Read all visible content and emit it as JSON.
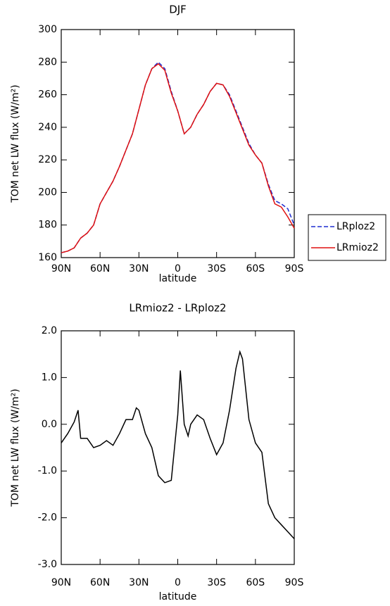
{
  "chart_data": [
    {
      "type": "line",
      "title": "DJF",
      "xlabel": "latitude",
      "ylabel": "TOM net LW flux (W/m²)",
      "x": [
        90,
        85,
        80,
        75,
        70,
        65,
        60,
        55,
        50,
        45,
        40,
        35,
        30,
        25,
        20,
        15,
        10,
        5,
        0,
        -5,
        -10,
        -15,
        -20,
        -25,
        -30,
        -35,
        -40,
        -45,
        -50,
        -55,
        -60,
        -65,
        -70,
        -75,
        -80,
        -85,
        -90
      ],
      "series": [
        {
          "name": "LRploz2",
          "color": "#1f2fd0",
          "dash": true,
          "values": [
            163,
            164,
            166,
            172,
            175,
            180,
            193,
            200,
            207,
            216,
            226,
            236,
            251,
            266,
            276,
            280,
            276,
            262,
            250,
            236,
            240,
            248,
            254,
            262,
            267,
            266,
            260,
            250,
            240,
            230,
            223,
            218,
            205,
            195,
            193,
            190,
            180
          ]
        },
        {
          "name": "LRmioz2",
          "color": "#e01010",
          "dash": false,
          "values": [
            163,
            164,
            166,
            172,
            175,
            180,
            193,
            200,
            207,
            216,
            226,
            236,
            251,
            266,
            276,
            279,
            275,
            261,
            250,
            236,
            240,
            248,
            254,
            262,
            267,
            266,
            259,
            249,
            239,
            229,
            223,
            218,
            204,
            193,
            191,
            185,
            178
          ]
        }
      ],
      "xlim": [
        90,
        -90
      ],
      "xticks": [
        {
          "value": 90,
          "label": "90N"
        },
        {
          "value": 60,
          "label": "60N"
        },
        {
          "value": 30,
          "label": "30N"
        },
        {
          "value": 0,
          "label": "0"
        },
        {
          "value": -30,
          "label": "30S"
        },
        {
          "value": -60,
          "label": "60S"
        },
        {
          "value": -90,
          "label": "90S"
        }
      ],
      "ylim": [
        160,
        300
      ],
      "yticks": [
        160,
        180,
        200,
        220,
        240,
        260,
        280,
        300
      ],
      "legend": "right"
    },
    {
      "type": "line",
      "title": "LRmioz2 - LRploz2",
      "xlabel": "latitude",
      "ylabel": "TOM net LW flux (W/m²)",
      "x": [
        90,
        85,
        80,
        77,
        75,
        70,
        65,
        60,
        55,
        50,
        45,
        40,
        35,
        32,
        30,
        25,
        20,
        15,
        10,
        5,
        0,
        -2,
        -5,
        -8,
        -10,
        -15,
        -20,
        -25,
        -30,
        -35,
        -40,
        -45,
        -48,
        -50,
        -55,
        -60,
        -65,
        -70,
        -75,
        -80,
        -85,
        -90
      ],
      "values": [
        -0.4,
        -0.2,
        0.05,
        0.3,
        -0.3,
        -0.3,
        -0.5,
        -0.45,
        -0.35,
        -0.45,
        -0.2,
        0.1,
        0.1,
        0.35,
        0.3,
        -0.2,
        -0.5,
        -1.1,
        -1.25,
        -1.2,
        0.2,
        1.15,
        0.0,
        -0.25,
        0.0,
        0.2,
        0.1,
        -0.3,
        -0.65,
        -0.4,
        0.3,
        1.2,
        1.55,
        1.4,
        0.1,
        -0.4,
        -0.6,
        -1.7,
        -2.0,
        -2.15,
        -2.3,
        -2.45
      ],
      "color": "#000000",
      "xlim": [
        90,
        -90
      ],
      "xticks": [
        {
          "value": 90,
          "label": "90N"
        },
        {
          "value": 60,
          "label": "60N"
        },
        {
          "value": 30,
          "label": "30N"
        },
        {
          "value": 0,
          "label": "0"
        },
        {
          "value": -30,
          "label": "30S"
        },
        {
          "value": -60,
          "label": "60S"
        },
        {
          "value": -90,
          "label": "90S"
        }
      ],
      "ylim": [
        -3,
        2
      ],
      "yticks": [
        {
          "value": -3,
          "label": "-3.0"
        },
        {
          "value": -2,
          "label": "-2.0"
        },
        {
          "value": -1,
          "label": "-1.0"
        },
        {
          "value": 0,
          "label": "0.0"
        },
        {
          "value": 1,
          "label": "1.0"
        },
        {
          "value": 2,
          "label": "2.0"
        }
      ]
    }
  ]
}
